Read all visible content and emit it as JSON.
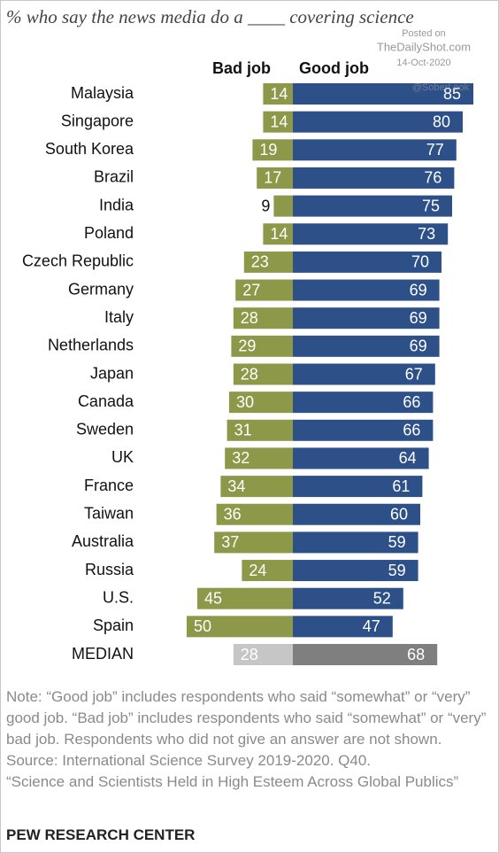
{
  "chart_data": {
    "type": "diverging_bar",
    "title": "% who say the news media do a ____ covering science",
    "categories": [
      "Malaysia",
      "Singapore",
      "South Korea",
      "Brazil",
      "India",
      "Poland",
      "Czech Republic",
      "Germany",
      "Italy",
      "Netherlands",
      "Japan",
      "Canada",
      "Sweden",
      "UK",
      "France",
      "Taiwan",
      "Australia",
      "Russia",
      "U.S.",
      "Spain"
    ],
    "series": [
      {
        "name": "Bad job",
        "color": "#8d9849",
        "values": [
          14,
          14,
          19,
          17,
          9,
          14,
          23,
          27,
          28,
          29,
          28,
          30,
          31,
          32,
          34,
          36,
          37,
          24,
          45,
          50
        ]
      },
      {
        "name": "Good job",
        "color": "#2d5089",
        "values": [
          85,
          80,
          77,
          76,
          75,
          73,
          70,
          69,
          69,
          69,
          67,
          66,
          66,
          64,
          61,
          60,
          59,
          59,
          52,
          47
        ]
      }
    ],
    "median": {
      "label": "MEDIAN",
      "values": [
        28,
        68
      ],
      "colors": [
        "#c6c6c6",
        "#7f7f7f"
      ]
    },
    "watermark": [
      "Posted on",
      "TheDailyShot.com",
      "14-Oct-2020",
      "@SoberLook"
    ],
    "note": "Note: “Good job” includes respondents who said “somewhat” or “very” good job. “Bad job” includes respondents who said “somewhat” or “very” bad job. Respondents who did not give an answer are not shown.",
    "source": [
      "Source: International Science Survey 2019-2020. Q40.",
      "“Science and Scientists Held in High Esteem Across Global Publics”"
    ],
    "footer": "PEW RESEARCH CENTER"
  }
}
